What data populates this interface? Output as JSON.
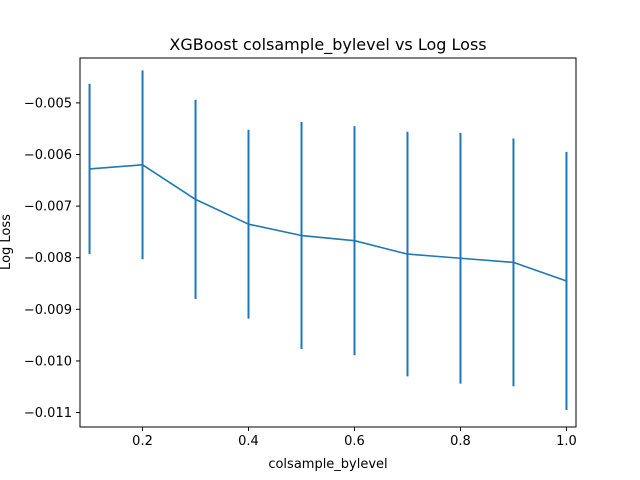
{
  "chart_data": {
    "type": "line",
    "title": "XGBoost colsample_bylevel vs Log Loss",
    "xlabel": "colsample_bylevel",
    "ylabel": "Log Loss",
    "x": [
      0.1,
      0.2,
      0.3,
      0.4,
      0.5,
      0.6,
      0.7,
      0.8,
      0.9,
      1.0
    ],
    "series": [
      {
        "values": [
          -0.00628,
          -0.0062,
          -0.00687,
          -0.00735,
          -0.00757,
          -0.00767,
          -0.00793,
          -0.00801,
          -0.00809,
          -0.00845
        ],
        "error": [
          0.00165,
          0.00183,
          0.00193,
          0.00183,
          0.0022,
          0.00222,
          0.00237,
          0.00243,
          0.0024,
          0.0025
        ],
        "color": "#1f77b4"
      }
    ],
    "xlim": [
      0.082,
      1.018
    ],
    "ylim": [
      -0.01128,
      -0.00413
    ],
    "xticks": [
      0.2,
      0.4,
      0.6,
      0.8,
      1.0
    ],
    "xtick_labels": [
      "0.2",
      "0.4",
      "0.6",
      "0.8",
      "1.0"
    ],
    "yticks": [
      -0.011,
      -0.01,
      -0.009,
      -0.008,
      -0.007,
      -0.006,
      -0.005
    ],
    "ytick_labels": [
      "−0.011",
      "−0.010",
      "−0.009",
      "−0.008",
      "−0.007",
      "−0.006",
      "−0.005"
    ],
    "grid": false,
    "legend": false
  }
}
